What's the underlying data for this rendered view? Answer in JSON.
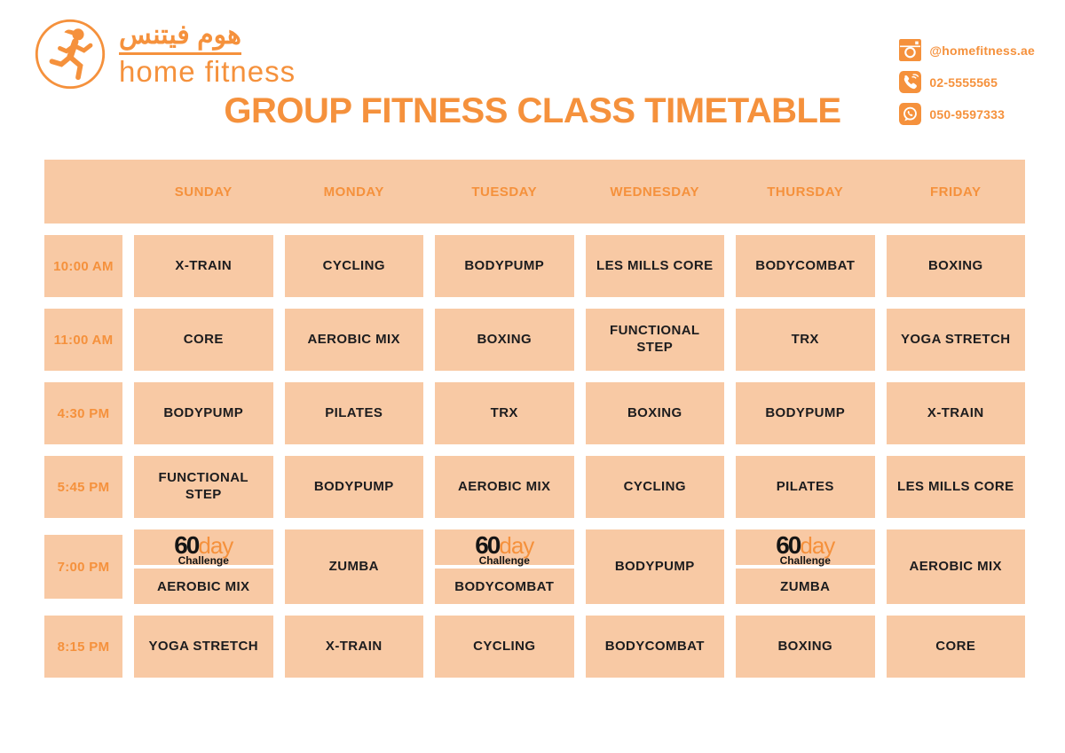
{
  "brand": {
    "arabic_name": "هوم فيتنس",
    "english_name": "home fitness"
  },
  "contact": {
    "instagram": "@homefitness.ae",
    "phone": "02-5555565",
    "whatsapp": "050-9597333"
  },
  "title": "GROUP FITNESS CLASS TIMETABLE",
  "colors": {
    "accent": "#F5913C",
    "cell_background": "#F8C9A4",
    "class_text": "#1C1C1E",
    "page_background": "#FFFFFF"
  },
  "challenge_badge": {
    "number": "60",
    "word": "day",
    "sub": "Challenge"
  },
  "timetable": {
    "days": [
      "SUNDAY",
      "MONDAY",
      "TUESDAY",
      "WEDNESDAY",
      "THURSDAY",
      "FRIDAY"
    ],
    "rows": [
      {
        "time": "10:00 AM",
        "classes": [
          {
            "name": "X-TRAIN"
          },
          {
            "name": "CYCLING"
          },
          {
            "name": "BODYPUMP"
          },
          {
            "name": "LES MILLS CORE"
          },
          {
            "name": "BODYCOMBAT"
          },
          {
            "name": "BOXING"
          }
        ]
      },
      {
        "time": "11:00 AM",
        "classes": [
          {
            "name": "CORE"
          },
          {
            "name": "AEROBIC MIX"
          },
          {
            "name": "BOXING"
          },
          {
            "name": "FUNCTIONAL\nSTEP"
          },
          {
            "name": "TRX"
          },
          {
            "name": "YOGA STRETCH"
          }
        ]
      },
      {
        "time": "4:30 PM",
        "classes": [
          {
            "name": "BODYPUMP"
          },
          {
            "name": "PILATES"
          },
          {
            "name": "TRX"
          },
          {
            "name": "BOXING"
          },
          {
            "name": "BODYPUMP"
          },
          {
            "name": "X-TRAIN"
          }
        ]
      },
      {
        "time": "5:45 PM",
        "classes": [
          {
            "name": "FUNCTIONAL\nSTEP"
          },
          {
            "name": "BODYPUMP"
          },
          {
            "name": "AEROBIC MIX"
          },
          {
            "name": "CYCLING"
          },
          {
            "name": "PILATES"
          },
          {
            "name": "LES MILLS CORE"
          }
        ]
      },
      {
        "time": "7:00 PM",
        "classes": [
          {
            "name": "AEROBIC MIX",
            "challenge": true
          },
          {
            "name": "ZUMBA"
          },
          {
            "name": "BODYCOMBAT",
            "challenge": true
          },
          {
            "name": "BODYPUMP"
          },
          {
            "name": "ZUMBA",
            "challenge": true
          },
          {
            "name": "AEROBIC MIX"
          }
        ]
      },
      {
        "time": "8:15 PM",
        "classes": [
          {
            "name": "YOGA STRETCH"
          },
          {
            "name": "X-TRAIN"
          },
          {
            "name": "CYCLING"
          },
          {
            "name": "BODYCOMBAT"
          },
          {
            "name": "BOXING"
          },
          {
            "name": "CORE"
          }
        ]
      }
    ]
  }
}
